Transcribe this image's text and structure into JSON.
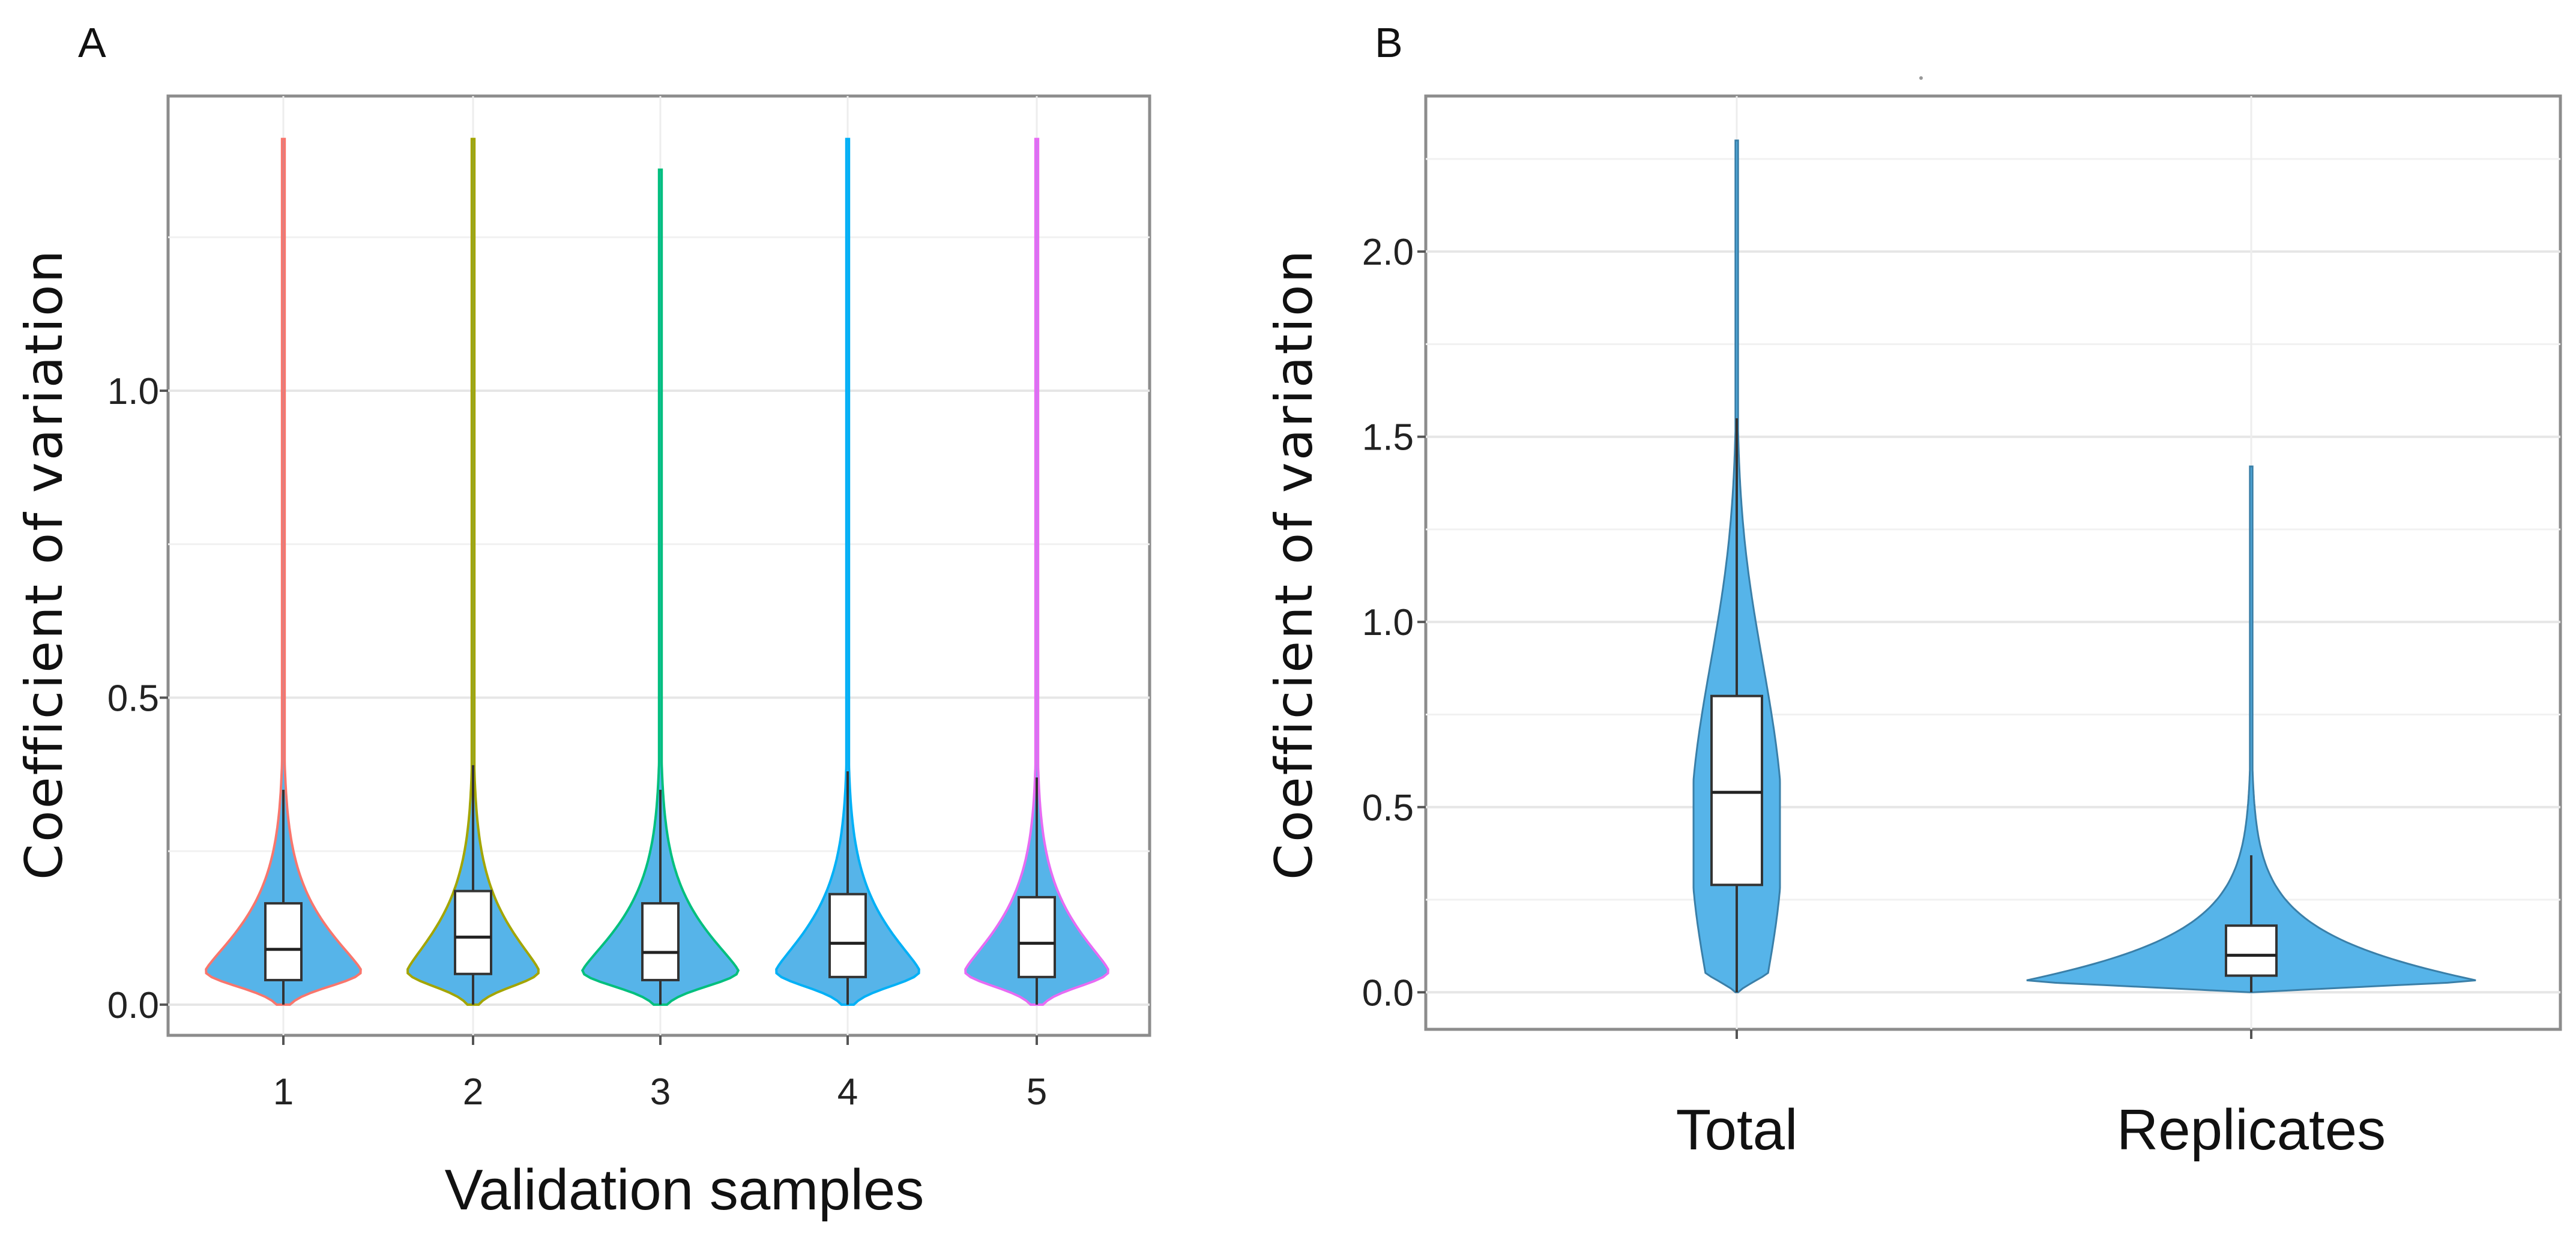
{
  "chart_data": [
    {
      "panel": "A",
      "type": "violin",
      "xlabel": "Validation samples",
      "ylabel": "Coefficient of variation",
      "ylim": [
        -0.05,
        1.48
      ],
      "yticks": [
        0.0,
        0.5,
        1.0
      ],
      "ytick_labels": [
        "0.0",
        "0.5",
        "1.0"
      ],
      "grid": true,
      "series": [
        {
          "name": "1",
          "outline": "#f8766d",
          "fill": "#56b4e9",
          "max": 1.41,
          "q1": 0.04,
          "median": 0.09,
          "q3": 0.165,
          "whisker_high": 0.35
        },
        {
          "name": "2",
          "outline": "#a3a500",
          "fill": "#56b4e9",
          "max": 1.41,
          "q1": 0.05,
          "median": 0.11,
          "q3": 0.185,
          "whisker_high": 0.39
        },
        {
          "name": "3",
          "outline": "#00bf7d",
          "fill": "#56b4e9",
          "max": 1.36,
          "q1": 0.04,
          "median": 0.085,
          "q3": 0.165,
          "whisker_high": 0.35
        },
        {
          "name": "4",
          "outline": "#00b0f6",
          "fill": "#56b4e9",
          "max": 1.41,
          "q1": 0.045,
          "median": 0.1,
          "q3": 0.18,
          "whisker_high": 0.38
        },
        {
          "name": "5",
          "outline": "#e76bf3",
          "fill": "#56b4e9",
          "max": 1.41,
          "q1": 0.045,
          "median": 0.1,
          "q3": 0.175,
          "whisker_high": 0.37
        }
      ]
    },
    {
      "panel": "B",
      "type": "violin",
      "xlabel": "",
      "ylabel": "Coefficient of variation",
      "ylim": [
        -0.1,
        2.42
      ],
      "yticks": [
        0.0,
        0.5,
        1.0,
        1.5,
        2.0
      ],
      "ytick_labels": [
        "0.0",
        "0.5",
        "1.0",
        "1.5",
        "2.0"
      ],
      "grid": true,
      "series": [
        {
          "name": "Total",
          "fill": "#56b4e9",
          "max": 2.3,
          "q1": 0.29,
          "median": 0.54,
          "q3": 0.8,
          "whisker_high": 1.55
        },
        {
          "name": "Replicates",
          "fill": "#56b4e9",
          "max": 1.42,
          "q1": 0.045,
          "median": 0.1,
          "q3": 0.18,
          "whisker_high": 0.37
        }
      ]
    }
  ]
}
